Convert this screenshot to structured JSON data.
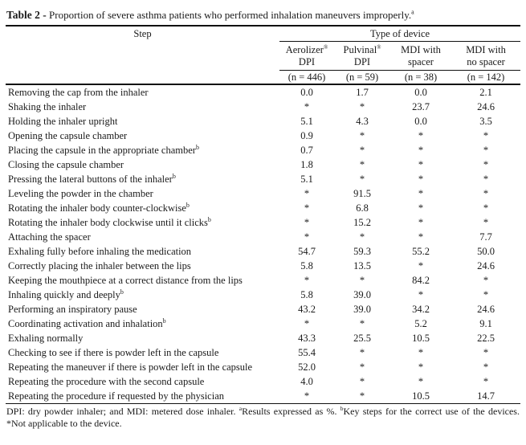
{
  "title": {
    "label": "Table 2 -",
    "text": " Proportion of severe asthma patients who performed inhalation maneuvers improperly.",
    "sup": "a"
  },
  "table": {
    "step_header": "Step",
    "group_header": "Type of device",
    "columns": [
      {
        "line1": "Aerolizer",
        "mark": "®",
        "line2": "DPI",
        "n": "(n = 446)"
      },
      {
        "line1": "Pulvinal",
        "mark": "®",
        "line2": "DPI",
        "n": "(n = 59)"
      },
      {
        "line1": "MDI with",
        "mark": "",
        "line2": "spacer",
        "n": "(n = 38)"
      },
      {
        "line1": "MDI with",
        "mark": "",
        "line2": "no spacer",
        "n": "(n = 142)"
      }
    ],
    "rows": [
      {
        "step": "Removing the cap from the inhaler",
        "sup": "",
        "values": [
          "0.0",
          "1.7",
          "0.0",
          "2.1"
        ]
      },
      {
        "step": "Shaking the inhaler",
        "sup": "",
        "values": [
          "*",
          "*",
          "23.7",
          "24.6"
        ]
      },
      {
        "step": "Holding the inhaler upright",
        "sup": "",
        "values": [
          "5.1",
          "4.3",
          "0.0",
          "3.5"
        ]
      },
      {
        "step": "Opening the capsule chamber",
        "sup": "",
        "values": [
          "0.9",
          "*",
          "*",
          "*"
        ]
      },
      {
        "step": "Placing the capsule in the appropriate chamber",
        "sup": "b",
        "values": [
          "0.7",
          "*",
          "*",
          "*"
        ]
      },
      {
        "step": "Closing the capsule chamber",
        "sup": "",
        "values": [
          "1.8",
          "*",
          "*",
          "*"
        ]
      },
      {
        "step": "Pressing the lateral buttons of the inhaler",
        "sup": "b",
        "values": [
          "5.1",
          "*",
          "*",
          "*"
        ]
      },
      {
        "step": "Leveling the powder in the chamber",
        "sup": "",
        "values": [
          "*",
          "91.5",
          "*",
          "*"
        ]
      },
      {
        "step": "Rotating the inhaler body counter-clockwise",
        "sup": "b",
        "values": [
          "*",
          "6.8",
          "*",
          "*"
        ]
      },
      {
        "step": "Rotating the inhaler body clockwise until it clicks",
        "sup": "b",
        "values": [
          "*",
          "15.2",
          "*",
          "*"
        ]
      },
      {
        "step": "Attaching the spacer",
        "sup": "",
        "values": [
          "*",
          "*",
          "*",
          "7.7"
        ]
      },
      {
        "step": "Exhaling fully before inhaling the medication",
        "sup": "",
        "values": [
          "54.7",
          "59.3",
          "55.2",
          "50.0"
        ]
      },
      {
        "step": "Correctly placing the inhaler between the lips",
        "sup": "",
        "values": [
          "5.8",
          "13.5",
          "*",
          "24.6"
        ]
      },
      {
        "step": "Keeping the mouthpiece at a correct distance from the lips",
        "sup": "",
        "values": [
          "*",
          "*",
          "84.2",
          "*"
        ]
      },
      {
        "step": "Inhaling quickly and deeply",
        "sup": "b",
        "values": [
          "5.8",
          "39.0",
          "*",
          "*"
        ]
      },
      {
        "step": "Performing an inspiratory pause",
        "sup": "",
        "values": [
          "43.2",
          "39.0",
          "34.2",
          "24.6"
        ]
      },
      {
        "step": "Coordinating activation and inhalation",
        "sup": "b",
        "values": [
          "*",
          "*",
          "5.2",
          "9.1"
        ]
      },
      {
        "step": "Exhaling normally",
        "sup": "",
        "values": [
          "43.3",
          "25.5",
          "10.5",
          "22.5"
        ]
      },
      {
        "step": "Checking to see if there is powder left in the capsule",
        "sup": "",
        "values": [
          "55.4",
          "*",
          "*",
          "*"
        ]
      },
      {
        "step": "Repeating the maneuver if there is powder left in the capsule",
        "sup": "",
        "values": [
          "52.0",
          "*",
          "*",
          "*"
        ]
      },
      {
        "step": "Repeating the procedure with the second capsule",
        "sup": "",
        "values": [
          "4.0",
          "*",
          "*",
          "*"
        ]
      },
      {
        "step": "Repeating the procedure if requested by the physician",
        "sup": "",
        "values": [
          "*",
          "*",
          "10.5",
          "14.7"
        ]
      }
    ]
  },
  "footnote": {
    "part1": "DPI: dry powder inhaler; and MDI: metered dose inhaler. ",
    "sup_a": "a",
    "part2": "Results expressed as %. ",
    "sup_b": "b",
    "part3": "Key steps for the correct use of the devices. *Not applicable to the device."
  },
  "colors": {
    "background": "#ffffff",
    "text": "#1a1a1a",
    "rule": "#111111"
  }
}
